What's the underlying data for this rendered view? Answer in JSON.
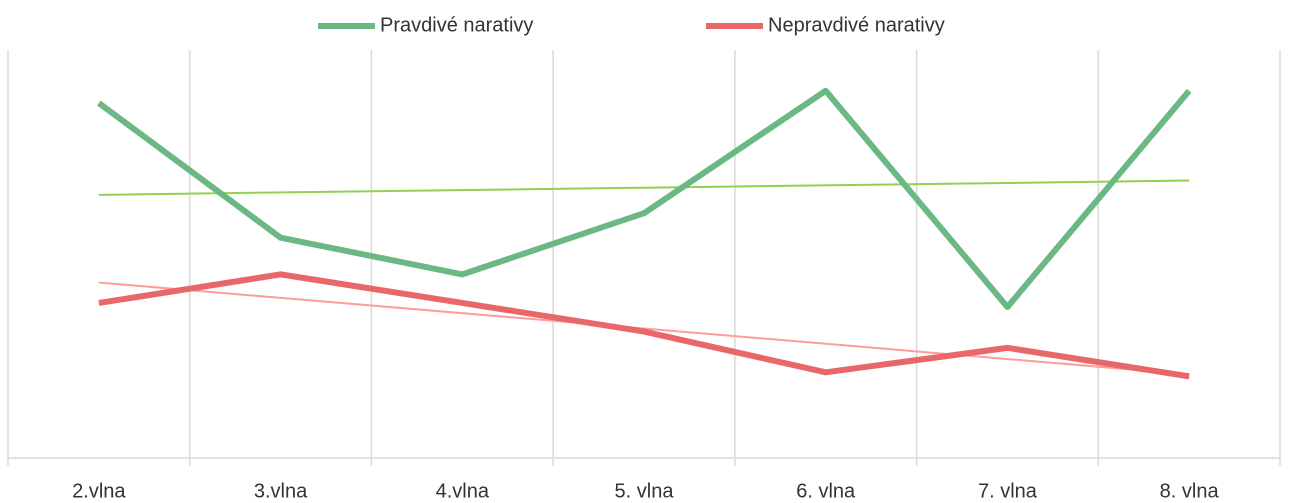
{
  "chart_data": {
    "type": "line",
    "categories": [
      "2.vlna",
      "3.vlna",
      "4.vlna",
      "5. vlna",
      "6. vlna",
      "7. vlna",
      "8. vlna"
    ],
    "series": [
      {
        "name": "Pravdivé narativy",
        "color": "#6bb884",
        "values": [
          87,
          54,
          45,
          60,
          90,
          37,
          90
        ],
        "trend": [
          64.5,
          68
        ],
        "trend_color": "#92d050"
      },
      {
        "name": "Nepravdivé narativy",
        "color": "#e8686a",
        "values": [
          38,
          45,
          38,
          31,
          21,
          27,
          20
        ],
        "trend": [
          43,
          20.5
        ],
        "trend_color": "#ff9b9b"
      }
    ],
    "ylim": [
      0,
      100
    ],
    "grid": true,
    "legend": "top"
  }
}
